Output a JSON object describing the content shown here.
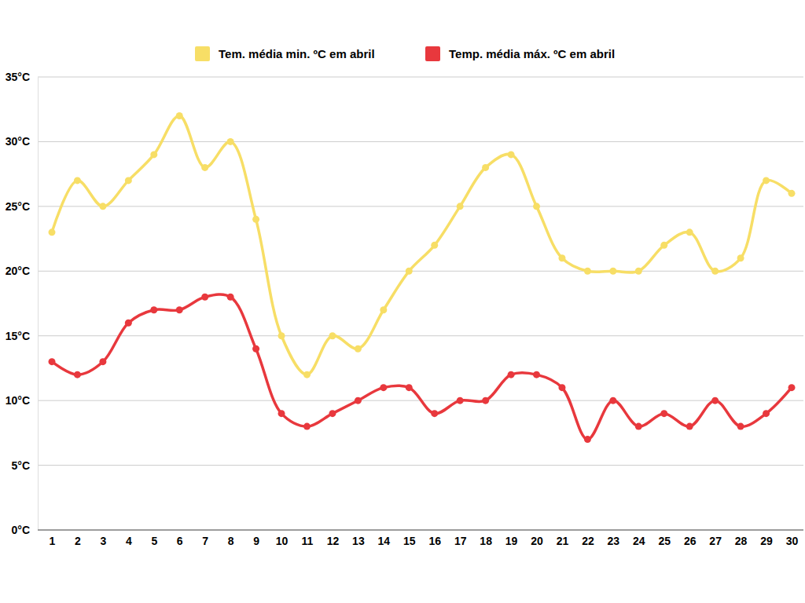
{
  "chart_data": {
    "type": "line",
    "categories": [
      "1",
      "2",
      "3",
      "4",
      "5",
      "6",
      "7",
      "8",
      "9",
      "10",
      "11",
      "12",
      "13",
      "14",
      "15",
      "16",
      "17",
      "18",
      "19",
      "20",
      "21",
      "22",
      "23",
      "24",
      "25",
      "26",
      "27",
      "28",
      "29",
      "30"
    ],
    "series": [
      {
        "name": "Tem. média min. ºC em abril",
        "color": "#f7de66",
        "values": [
          23,
          27,
          25,
          27,
          29,
          32,
          28,
          30,
          24,
          15,
          12,
          15,
          14,
          17,
          20,
          22,
          25,
          28,
          29,
          25,
          21,
          20,
          20,
          20,
          22,
          23,
          20,
          21,
          27,
          26
        ]
      },
      {
        "name": "Temp. média máx. ºC em abril",
        "color": "#e8383d",
        "values": [
          13,
          12,
          13,
          16,
          17,
          17,
          18,
          18,
          14,
          9,
          8,
          9,
          10,
          11,
          11,
          9,
          10,
          10,
          12,
          12,
          11,
          7,
          10,
          8,
          9,
          8,
          10,
          8,
          9,
          11
        ]
      }
    ],
    "ylim": [
      0,
      35
    ],
    "yticks": [
      {
        "value": 0,
        "label": "0°C"
      },
      {
        "value": 5,
        "label": "5°C"
      },
      {
        "value": 10,
        "label": "10°C"
      },
      {
        "value": 15,
        "label": "15°C"
      },
      {
        "value": 20,
        "label": "20°C"
      },
      {
        "value": 25,
        "label": "25°C"
      },
      {
        "value": 30,
        "label": "30°C"
      },
      {
        "value": 35,
        "label": "35°C"
      }
    ],
    "grid": true,
    "legend": "top",
    "marker": "circle",
    "line_style": "solid"
  }
}
